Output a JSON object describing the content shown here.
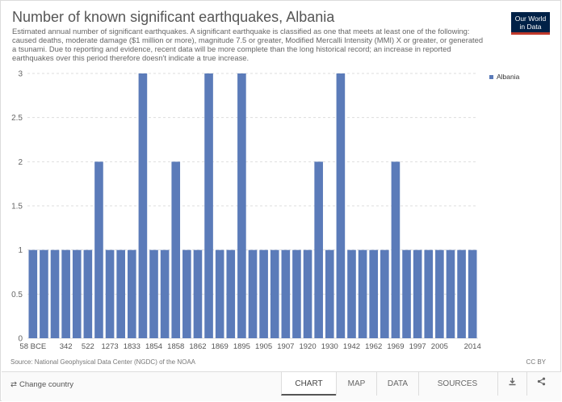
{
  "header": {
    "title": "Number of known significant earthquakes, Albania",
    "subtitle": "Estimated annual number of significant earthquakes. A significant earthquake is classified as one that meets at least one of the following: caused deaths, moderate damage ($1 million or more), magnitude 7.5 or greater, Modified Mercalli Intensity (MMI) X or greater, or generated a tsunami. Due to reporting and evidence, recent data will be more complete than the long historical record; an increase in reported earthquakes over this period therefore doesn't indicate a true increase."
  },
  "logo": {
    "line1": "Our World",
    "line2": "in Data"
  },
  "chart_data": {
    "type": "bar",
    "categories": [
      "58 BCE",
      "",
      "",
      "342",
      "",
      "522",
      "",
      "1273",
      "",
      "1833",
      "",
      "1854",
      "",
      "1858",
      "",
      "1862",
      "",
      "1869",
      "",
      "1895",
      "",
      "1905",
      "",
      "1907",
      "",
      "1920",
      "",
      "1930",
      "",
      "1942",
      "",
      "1962",
      "",
      "1969",
      "",
      "1997",
      "",
      "2005",
      "",
      "",
      "2014"
    ],
    "values": [
      1,
      1,
      1,
      1,
      1,
      1,
      2,
      1,
      1,
      1,
      3,
      1,
      1,
      2,
      1,
      1,
      3,
      1,
      1,
      3,
      1,
      1,
      1,
      1,
      1,
      1,
      2,
      1,
      3,
      1,
      1,
      1,
      1,
      2,
      1,
      1,
      1,
      1,
      1,
      1,
      1
    ],
    "series": [
      {
        "name": "Albania",
        "color": "#5b7bb9"
      }
    ],
    "ylim": [
      0,
      3
    ],
    "yticks": [
      0,
      0.5,
      1,
      1.5,
      2,
      2.5,
      3
    ],
    "xtick_labels": [
      "58 BCE",
      "342",
      "522",
      "1273",
      "1833",
      "1854",
      "1858",
      "1862",
      "1869",
      "1895",
      "1905",
      "1907",
      "1920",
      "1930",
      "1942",
      "1962",
      "1969",
      "1997",
      "2005",
      "2014"
    ],
    "xtick_index": [
      0,
      3,
      5,
      7,
      9,
      11,
      13,
      15,
      17,
      19,
      21,
      23,
      25,
      27,
      29,
      31,
      33,
      35,
      37,
      40
    ],
    "grid": "horizontal-dashed",
    "legend": "right"
  },
  "footer": {
    "source": "Source: National Geophysical Data Center (NGDC) of the NOAA",
    "license": "CC BY"
  },
  "controls": {
    "change_country": "Change country",
    "tabs": [
      "CHART",
      "MAP",
      "DATA",
      "SOURCES"
    ],
    "active_tab": "CHART",
    "download_icon": "download-icon",
    "share_icon": "share-icon"
  }
}
